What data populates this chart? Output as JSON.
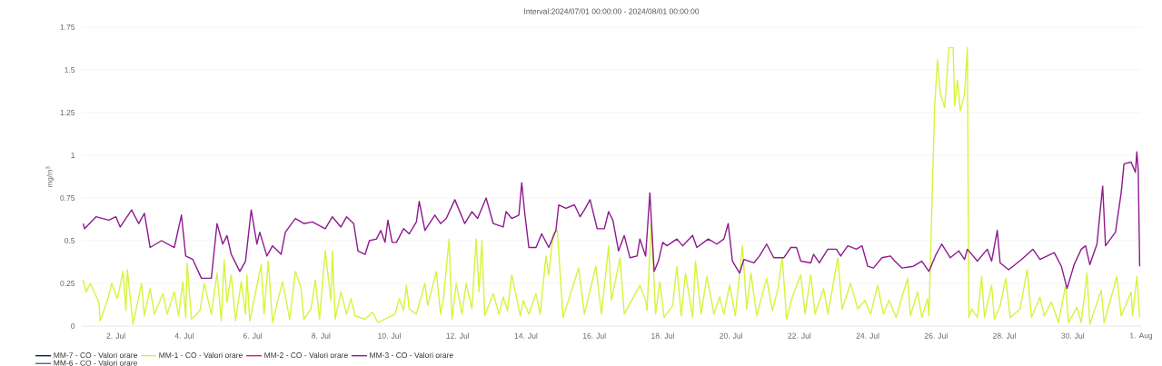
{
  "chart_data": {
    "type": "line",
    "title": "Interval:2024/07/01 00:00:00 - 2024/08/01 00:00:00",
    "ylabel": "mg/m$^{3}$",
    "xlim": [
      "2024-07-01T00:00",
      "2024-08-01T00:00"
    ],
    "xticks": [
      {
        "value": "2024-07-02",
        "label": "2. Jul"
      },
      {
        "value": "2024-07-04",
        "label": "4. Jul"
      },
      {
        "value": "2024-07-06",
        "label": "6. Jul"
      },
      {
        "value": "2024-07-08",
        "label": "8. Jul"
      },
      {
        "value": "2024-07-10",
        "label": "10. Jul"
      },
      {
        "value": "2024-07-12",
        "label": "12. Jul"
      },
      {
        "value": "2024-07-14",
        "label": "14. Jul"
      },
      {
        "value": "2024-07-16",
        "label": "16. Jul"
      },
      {
        "value": "2024-07-18",
        "label": "18. Jul"
      },
      {
        "value": "2024-07-20",
        "label": "20. Jul"
      },
      {
        "value": "2024-07-22",
        "label": "22. Jul"
      },
      {
        "value": "2024-07-24",
        "label": "24. Jul"
      },
      {
        "value": "2024-07-26",
        "label": "26. Jul"
      },
      {
        "value": "2024-07-28",
        "label": "28. Jul"
      },
      {
        "value": "2024-07-30",
        "label": "30. Jul"
      },
      {
        "value": "2024-08-01",
        "label": "1. Aug"
      }
    ],
    "ylim": [
      0,
      1.75
    ],
    "yticks": [
      0,
      0.25,
      0.5,
      0.75,
      1,
      1.25,
      1.5,
      1.75
    ],
    "grid": "y",
    "legend": "bottom",
    "series": [
      {
        "name": "MM-7 - CO - Valori orare",
        "color": "#0d1b4f"
      },
      {
        "name": "MM-1 - CO - Valori orare",
        "color": "#d4f53c",
        "x": [
          "2024-07-01T01:00",
          "2024-07-01T03:00",
          "2024-07-01T06:00",
          "2024-07-01T12:00",
          "2024-07-01T13:00",
          "2024-07-01T18:00",
          "2024-07-01T21:00",
          "2024-07-02T01:00",
          "2024-07-02T05:00",
          "2024-07-02T07:00",
          "2024-07-02T08:00",
          "2024-07-02T12:00",
          "2024-07-02T18:00",
          "2024-07-02T20:00",
          "2024-07-03T00:00",
          "2024-07-03T03:00",
          "2024-07-03T09:00",
          "2024-07-03T12:00",
          "2024-07-03T17:00",
          "2024-07-03T20:00",
          "2024-07-03T23:00",
          "2024-07-04T01:00",
          "2024-07-04T02:00",
          "2024-07-04T05:00",
          "2024-07-04T11:00",
          "2024-07-04T14:00",
          "2024-07-04T19:00",
          "2024-07-04T23:00",
          "2024-07-05T02:00",
          "2024-07-05T04:00",
          "2024-07-05T06:00",
          "2024-07-05T09:00",
          "2024-07-05T12:00",
          "2024-07-05T16:00",
          "2024-07-05T19:00",
          "2024-07-05T20:00",
          "2024-07-05T22:00",
          "2024-07-06T06:00",
          "2024-07-06T08:00",
          "2024-07-06T11:00",
          "2024-07-06T14:00",
          "2024-07-06T18:00",
          "2024-07-06T21:00",
          "2024-07-07T02:00",
          "2024-07-07T06:00",
          "2024-07-07T10:00",
          "2024-07-07T12:00",
          "2024-07-07T17:00",
          "2024-07-07T20:00",
          "2024-07-07T23:00",
          "2024-07-08T03:00",
          "2024-07-08T07:00",
          "2024-07-08T08:00",
          "2024-07-08T10:00",
          "2024-07-08T14:00",
          "2024-07-08T18:00",
          "2024-07-08T21:00",
          "2024-07-09T00:00",
          "2024-07-09T07:00",
          "2024-07-09T12:00",
          "2024-07-09T13:00",
          "2024-07-09T16:00",
          "2024-07-10T04:00",
          "2024-07-10T07:00",
          "2024-07-10T10:00",
          "2024-07-10T12:00",
          "2024-07-10T14:00",
          "2024-07-10T19:00",
          "2024-07-11T01:00",
          "2024-07-11T03:00",
          "2024-07-11T09:00",
          "2024-07-11T12:00",
          "2024-07-11T14:00",
          "2024-07-11T18:00",
          "2024-07-11T20:00",
          "2024-07-11T23:00",
          "2024-07-12T03:00",
          "2024-07-12T06:00",
          "2024-07-12T10:00",
          "2024-07-12T13:00",
          "2024-07-12T15:00",
          "2024-07-12T17:00",
          "2024-07-12T19:00",
          "2024-07-13T01:00",
          "2024-07-13T05:00",
          "2024-07-13T08:00",
          "2024-07-13T11:00",
          "2024-07-13T14:00",
          "2024-07-13T20:00",
          "2024-07-13T22:00",
          "2024-07-14T02:00",
          "2024-07-14T07:00",
          "2024-07-14T10:00",
          "2024-07-14T14:00",
          "2024-07-14T16:00",
          "2024-07-14T19:00",
          "2024-07-14T22:00",
          "2024-07-15T02:00",
          "2024-07-15T13:00",
          "2024-07-15T17:00",
          "2024-07-16T01:00",
          "2024-07-16T05:00",
          "2024-07-16T10:00",
          "2024-07-16T12:00",
          "2024-07-16T18:00",
          "2024-07-16T21:00",
          "2024-07-17T08:00",
          "2024-07-17T12:00",
          "2024-07-17T13:00",
          "2024-07-17T16:00",
          "2024-07-17T19:00",
          "2024-07-17T22:00",
          "2024-07-18T01:00",
          "2024-07-18T07:00",
          "2024-07-18T10:00",
          "2024-07-18T13:00",
          "2024-07-18T16:00",
          "2024-07-18T21:00",
          "2024-07-18T23:00",
          "2024-07-19T03:00",
          "2024-07-19T07:00",
          "2024-07-19T12:00",
          "2024-07-19T16:00",
          "2024-07-19T19:00",
          "2024-07-19T23:00",
          "2024-07-20T03:00",
          "2024-07-20T08:00",
          "2024-07-20T11:00",
          "2024-07-20T14:00",
          "2024-07-20T18:00",
          "2024-07-21T01:00",
          "2024-07-21T05:00",
          "2024-07-21T09:00",
          "2024-07-21T12:00",
          "2024-07-21T15:00",
          "2024-07-21T19:00",
          "2024-07-22T01:00",
          "2024-07-22T04:00",
          "2024-07-22T08:00",
          "2024-07-22T11:00",
          "2024-07-22T17:00",
          "2024-07-22T20:00",
          "2024-07-23T03:00",
          "2024-07-23T06:00",
          "2024-07-23T12:00",
          "2024-07-23T17:00",
          "2024-07-23T22:00",
          "2024-07-24T02:00",
          "2024-07-24T07:00",
          "2024-07-24T11:00",
          "2024-07-24T15:00",
          "2024-07-24T20:00",
          "2024-07-25T00:00",
          "2024-07-25T04:00",
          "2024-07-25T06:00",
          "2024-07-25T11:00",
          "2024-07-25T14:00",
          "2024-07-25T18:00",
          "2024-07-25T19:00",
          "2024-07-25T23:00",
          "2024-07-26T01:00",
          "2024-07-26T03:00",
          "2024-07-26T06:00",
          "2024-07-26T09:00",
          "2024-07-26T12:00",
          "2024-07-26T13:00",
          "2024-07-26T15:00",
          "2024-07-26T17:00",
          "2024-07-26T20:00",
          "2024-07-26T22:00",
          "2024-07-26T23:00",
          "2024-07-27T01:00",
          "2024-07-27T05:00",
          "2024-07-27T08:00",
          "2024-07-27T10:00",
          "2024-07-27T15:00",
          "2024-07-27T17:00",
          "2024-07-27T21:00",
          "2024-07-28T01:00",
          "2024-07-28T04:00",
          "2024-07-28T11:00",
          "2024-07-28T16:00",
          "2024-07-28T19:00",
          "2024-07-29T01:00",
          "2024-07-29T04:00",
          "2024-07-29T09:00",
          "2024-07-29T14:00",
          "2024-07-29T19:00",
          "2024-07-29T21:00",
          "2024-07-30T03:00",
          "2024-07-30T06:00",
          "2024-07-30T10:00",
          "2024-07-30T12:00",
          "2024-07-30T20:00",
          "2024-07-30T22:00",
          "2024-07-31T07:00",
          "2024-07-31T10:00",
          "2024-07-31T17:00",
          "2024-07-31T18:00",
          "2024-07-31T21:00",
          "2024-07-31T23:00"
        ],
        "values": [
          0.27,
          0.2,
          0.25,
          0.14,
          0.03,
          0.15,
          0.25,
          0.16,
          0.32,
          0.09,
          0.33,
          0.01,
          0.25,
          0.06,
          0.22,
          0.07,
          0.19,
          0.07,
          0.2,
          0.06,
          0.26,
          0.05,
          0.37,
          0.04,
          0.09,
          0.25,
          0.07,
          0.31,
          0.03,
          0.39,
          0.14,
          0.3,
          0.03,
          0.26,
          0.07,
          0.3,
          0.03,
          0.36,
          0.07,
          0.38,
          0.02,
          0.16,
          0.26,
          0.04,
          0.32,
          0.22,
          0.04,
          0.1,
          0.27,
          0.04,
          0.44,
          0.15,
          0.44,
          0.04,
          0.2,
          0.07,
          0.16,
          0.06,
          0.04,
          0.08,
          0.07,
          0.02,
          0.07,
          0.16,
          0.09,
          0.24,
          0.1,
          0.07,
          0.25,
          0.12,
          0.32,
          0.07,
          0.16,
          0.51,
          0.04,
          0.25,
          0.07,
          0.25,
          0.1,
          0.51,
          0.2,
          0.5,
          0.06,
          0.19,
          0.07,
          0.17,
          0.09,
          0.3,
          0.06,
          0.15,
          0.07,
          0.19,
          0.07,
          0.41,
          0.3,
          0.54,
          0.56,
          0.05,
          0.34,
          0.07,
          0.35,
          0.07,
          0.47,
          0.15,
          0.4,
          0.07,
          0.24,
          0.15,
          0.09,
          0.6,
          0.07,
          0.26,
          0.05,
          0.12,
          0.35,
          0.06,
          0.31,
          0.05,
          0.38,
          0.07,
          0.29,
          0.07,
          0.17,
          0.07,
          0.24,
          0.06,
          0.47,
          0.1,
          0.31,
          0.06,
          0.28,
          0.09,
          0.22,
          0.4,
          0.04,
          0.17,
          0.3,
          0.07,
          0.3,
          0.07,
          0.22,
          0.07,
          0.4,
          0.1,
          0.25,
          0.1,
          0.15,
          0.07,
          0.24,
          0.07,
          0.15,
          0.05,
          0.17,
          0.28,
          0.06,
          0.2,
          0.05,
          0.16,
          0.06,
          1.29,
          1.56,
          1.36,
          1.28,
          1.63,
          1.63,
          1.29,
          1.44,
          1.26,
          1.36,
          1.63,
          0.05,
          0.1,
          0.05,
          0.29,
          0.05,
          0.24,
          0.04,
          0.12,
          0.28,
          0.05,
          0.1,
          0.33,
          0.05,
          0.17,
          0.06,
          0.14,
          0.02,
          0.24,
          0.02,
          0.11,
          0.02,
          0.31,
          0.01,
          0.21,
          0.02,
          0.29,
          0.06,
          0.2,
          0.06,
          0.29,
          0.05
        ]
      },
      {
        "name": "MM-2 - CO - Valori orare",
        "color": "#ef1454"
      },
      {
        "name": "MM-3 - CO - Valori orare",
        "color": "#8e1a8e",
        "x": [
          "2024-07-01T01:00",
          "2024-07-01T02:00",
          "2024-07-01T10:00",
          "2024-07-01T19:00",
          "2024-07-02T00:00",
          "2024-07-02T03:00",
          "2024-07-02T11:00",
          "2024-07-02T16:00",
          "2024-07-02T20:00",
          "2024-07-03T00:00",
          "2024-07-03T08:00",
          "2024-07-03T17:00",
          "2024-07-03T22:00",
          "2024-07-04T01:00",
          "2024-07-04T06:00",
          "2024-07-04T12:00",
          "2024-07-04T19:00",
          "2024-07-04T23:00",
          "2024-07-05T03:00",
          "2024-07-05T06:00",
          "2024-07-05T09:00",
          "2024-07-05T15:00",
          "2024-07-05T19:00",
          "2024-07-05T23:00",
          "2024-07-06T03:00",
          "2024-07-06T05:00",
          "2024-07-06T10:00",
          "2024-07-06T14:00",
          "2024-07-06T20:00",
          "2024-07-06T23:00",
          "2024-07-07T06:00",
          "2024-07-07T12:00",
          "2024-07-07T18:00",
          "2024-07-08T03:00",
          "2024-07-08T08:00",
          "2024-07-08T14:00",
          "2024-07-08T18:00",
          "2024-07-08T23:00",
          "2024-07-09T02:00",
          "2024-07-09T07:00",
          "2024-07-09T10:00",
          "2024-07-09T15:00",
          "2024-07-09T18:00",
          "2024-07-09T21:00",
          "2024-07-09T23:00",
          "2024-07-10T02:00",
          "2024-07-10T05:00",
          "2024-07-10T10:00",
          "2024-07-10T14:00",
          "2024-07-10T19:00",
          "2024-07-10T21:00",
          "2024-07-11T01:00",
          "2024-07-11T08:00",
          "2024-07-11T12:00",
          "2024-07-11T16:00",
          "2024-07-11T22:00",
          "2024-07-12T05:00",
          "2024-07-12T10:00",
          "2024-07-12T14:00",
          "2024-07-12T20:00",
          "2024-07-13T01:00",
          "2024-07-13T08:00",
          "2024-07-13T10:00",
          "2024-07-13T14:00",
          "2024-07-13T19:00",
          "2024-07-13T21:00",
          "2024-07-13T23:00",
          "2024-07-14T02:00",
          "2024-07-14T07:00",
          "2024-07-14T11:00",
          "2024-07-14T16:00",
          "2024-07-14T21:00",
          "2024-07-14T23:00",
          "2024-07-15T04:00",
          "2024-07-15T10:00",
          "2024-07-15T14:00",
          "2024-07-15T17:00",
          "2024-07-15T21:00",
          "2024-07-16T02:00",
          "2024-07-16T07:00",
          "2024-07-16T10:00",
          "2024-07-16T13:00",
          "2024-07-16T17:00",
          "2024-07-16T21:00",
          "2024-07-17T01:00",
          "2024-07-17T06:00",
          "2024-07-17T08:00",
          "2024-07-17T12:00",
          "2024-07-17T15:00",
          "2024-07-17T18:00",
          "2024-07-17T21:00",
          "2024-07-18T00:00",
          "2024-07-18T03:00",
          "2024-07-18T10:00",
          "2024-07-18T14:00",
          "2024-07-18T21:00",
          "2024-07-19T00:00",
          "2024-07-19T08:00",
          "2024-07-19T14:00",
          "2024-07-19T19:00",
          "2024-07-19T22:00",
          "2024-07-20T01:00",
          "2024-07-20T06:00",
          "2024-07-20T09:00",
          "2024-07-20T16:00",
          "2024-07-20T20:00",
          "2024-07-21T01:00",
          "2024-07-21T06:00",
          "2024-07-21T13:00",
          "2024-07-21T18:00",
          "2024-07-21T22:00",
          "2024-07-22T01:00",
          "2024-07-22T08:00",
          "2024-07-22T10:00",
          "2024-07-22T14:00",
          "2024-07-22T20:00",
          "2024-07-23T02:00",
          "2024-07-23T05:00",
          "2024-07-23T10:00",
          "2024-07-23T16:00",
          "2024-07-23T20:00",
          "2024-07-24T00:00",
          "2024-07-24T04:00",
          "2024-07-24T10:00",
          "2024-07-24T16:00",
          "2024-07-24T19:00",
          "2024-07-25T00:00",
          "2024-07-25T08:00",
          "2024-07-25T14:00",
          "2024-07-25T19:00",
          "2024-07-26T00:00",
          "2024-07-26T04:00",
          "2024-07-26T10:00",
          "2024-07-26T16:00",
          "2024-07-26T20:00",
          "2024-07-26T22:00",
          "2024-07-27T05:00",
          "2024-07-27T12:00",
          "2024-07-27T15:00",
          "2024-07-27T19:00",
          "2024-07-27T21:00",
          "2024-07-28T03:00",
          "2024-07-28T12:00",
          "2024-07-28T20:00",
          "2024-07-29T01:00",
          "2024-07-29T11:00",
          "2024-07-29T16:00",
          "2024-07-29T20:00",
          "2024-07-30T01:00",
          "2024-07-30T06:00",
          "2024-07-30T09:00",
          "2024-07-30T12:00",
          "2024-07-30T17:00",
          "2024-07-30T21:00",
          "2024-07-30T23:00",
          "2024-07-31T06:00",
          "2024-07-31T10:00",
          "2024-07-31T12:00",
          "2024-07-31T17:00",
          "2024-07-31T20:00",
          "2024-07-31T21:00",
          "2024-07-31T22:00",
          "2024-07-31T23:00"
        ],
        "values": [
          0.6,
          0.57,
          0.64,
          0.62,
          0.64,
          0.58,
          0.68,
          0.6,
          0.66,
          0.46,
          0.5,
          0.46,
          0.65,
          0.41,
          0.39,
          0.28,
          0.28,
          0.6,
          0.48,
          0.53,
          0.42,
          0.32,
          0.38,
          0.68,
          0.48,
          0.55,
          0.41,
          0.47,
          0.42,
          0.55,
          0.63,
          0.6,
          0.61,
          0.57,
          0.64,
          0.58,
          0.64,
          0.6,
          0.44,
          0.42,
          0.5,
          0.51,
          0.56,
          0.49,
          0.62,
          0.49,
          0.49,
          0.57,
          0.54,
          0.61,
          0.73,
          0.56,
          0.65,
          0.6,
          0.63,
          0.74,
          0.6,
          0.67,
          0.63,
          0.75,
          0.6,
          0.58,
          0.67,
          0.63,
          0.65,
          0.84,
          0.67,
          0.46,
          0.46,
          0.54,
          0.46,
          0.56,
          0.71,
          0.69,
          0.71,
          0.64,
          0.68,
          0.74,
          0.57,
          0.57,
          0.67,
          0.62,
          0.44,
          0.53,
          0.4,
          0.41,
          0.51,
          0.41,
          0.78,
          0.32,
          0.38,
          0.49,
          0.47,
          0.51,
          0.47,
          0.53,
          0.46,
          0.51,
          0.48,
          0.51,
          0.6,
          0.38,
          0.31,
          0.39,
          0.37,
          0.41,
          0.48,
          0.4,
          0.4,
          0.46,
          0.46,
          0.38,
          0.37,
          0.42,
          0.37,
          0.45,
          0.45,
          0.41,
          0.47,
          0.45,
          0.47,
          0.35,
          0.34,
          0.4,
          0.41,
          0.38,
          0.34,
          0.35,
          0.38,
          0.32,
          0.42,
          0.48,
          0.4,
          0.44,
          0.39,
          0.45,
          0.38,
          0.45,
          0.38,
          0.56,
          0.37,
          0.33,
          0.39,
          0.45,
          0.39,
          0.43,
          0.35,
          0.22,
          0.36,
          0.45,
          0.47,
          0.36,
          0.48,
          0.82,
          0.47,
          0.55,
          0.78,
          0.95,
          0.96,
          0.9,
          1.02,
          0.91,
          0.35
        ]
      },
      {
        "name": "MM-6 - CO - Valori orare",
        "color": "#3b6ea8"
      }
    ]
  }
}
